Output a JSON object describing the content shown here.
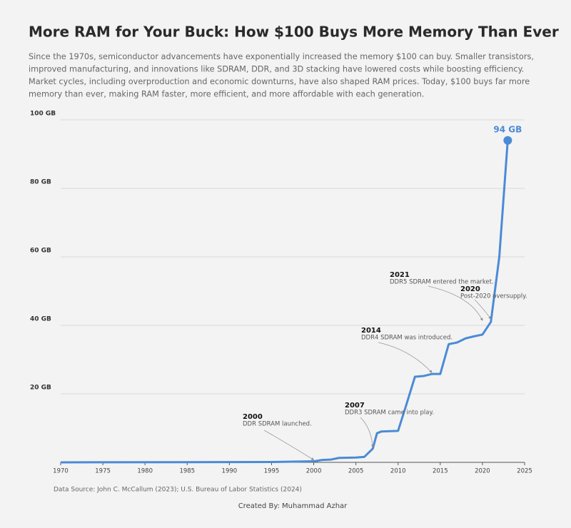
{
  "chart_data": {
    "type": "line",
    "title": "More RAM for Your Buck: How $100 Buys More Memory Than Ever",
    "subtitle_lines": [
      "Since the 1970s, semiconductor advancements have exponentially increased the memory $100 can buy. Smaller transistors,",
      "improved manufacturing, and innovations like SDRAM, DDR, and 3D stacking have lowered costs while boosting efficiency.",
      "Market cycles, including overproduction and economic downturns, have also shaped RAM prices. Today, $100 buys far more",
      "memory than ever, making RAM faster, more efficient, and more affordable with each generation."
    ],
    "x": [
      1970,
      1995,
      2000,
      2001,
      2002,
      2003,
      2005,
      2006,
      2007,
      2007.5,
      2008,
      2010,
      2011,
      2012,
      2013,
      2014,
      2015,
      2016,
      2017,
      2018,
      2019,
      2020,
      2021,
      2022,
      2023
    ],
    "values": [
      0,
      0.1,
      0.3,
      0.7,
      0.8,
      1.3,
      1.4,
      1.6,
      4,
      8.5,
      9,
      9.2,
      17,
      25,
      25.2,
      25.8,
      25.8,
      34.5,
      35,
      36.2,
      36.8,
      37.3,
      41,
      60,
      94
    ],
    "value_labels": [
      null,
      null,
      null,
      null,
      null,
      null,
      null,
      null,
      null,
      null,
      null,
      null,
      null,
      null,
      null,
      null,
      null,
      null,
      null,
      null,
      null,
      null,
      null,
      null,
      "94 GB"
    ],
    "color": "#4a8bd6",
    "xlim": [
      1970,
      2025
    ],
    "xticks": [
      1970,
      1975,
      1980,
      1985,
      1990,
      1995,
      2000,
      2005,
      2010,
      2015,
      2020,
      2025
    ],
    "ylim": [
      0,
      100
    ],
    "yticks": [
      {
        "value": 20,
        "label": "20 GB"
      },
      {
        "value": 40,
        "label": "40 GB"
      },
      {
        "value": 60,
        "label": "60 GB"
      },
      {
        "value": 80,
        "label": "80 GB"
      },
      {
        "value": 100,
        "label": "100 GB"
      }
    ],
    "grid": true,
    "annotations": [
      {
        "label": "2000",
        "text": "DDR SDRAM launched.",
        "x": 2000,
        "y": 0.3
      },
      {
        "label": "2007",
        "text": "DDR3 SDRAM came into play.",
        "x": 2007,
        "y": 4
      },
      {
        "label": "2014",
        "text": "DDR4 SDRAM was introduced.",
        "x": 2014,
        "y": 25.8
      },
      {
        "label": "2021",
        "text": "DDR5 SDRAM entered the market.",
        "x": 2020,
        "y": 41
      },
      {
        "label": "2020",
        "text": "Post-2020 oversupply.",
        "x": 2021,
        "y": 41.5
      }
    ],
    "source": "Data Source: John C. McCallum (2023); U.S. Bureau of Labor Statistics (2024)",
    "credit": "Created By: Muhammad Azhar"
  }
}
